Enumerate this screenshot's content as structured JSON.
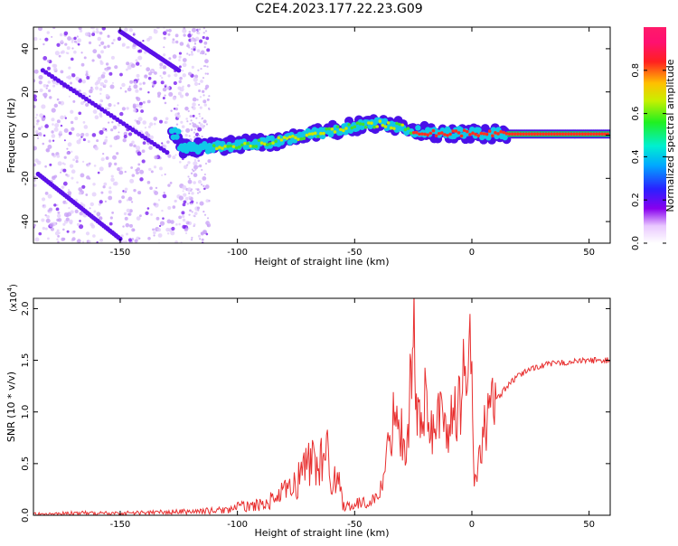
{
  "title": "C2E4.2023.177.22.23.G09",
  "chart_data": [
    {
      "type": "heatmap",
      "xlabel": "Height of straight line (km)",
      "ylabel": "Frequency (Hz)",
      "xlim": [
        -187,
        59
      ],
      "ylim": [
        -50,
        50
      ],
      "xticks": [
        -150,
        -100,
        -50,
        0,
        50
      ],
      "yticks": [
        -40,
        -20,
        0,
        20,
        40
      ],
      "colorbar": {
        "label": "Normalized spectral amplitude",
        "range": [
          0.0,
          1.0
        ],
        "ticks": [
          0.0,
          0.2,
          0.4,
          0.6,
          0.8
        ]
      },
      "ridge": [
        {
          "x": -125,
          "y": -6
        },
        {
          "x": -115,
          "y": -6
        },
        {
          "x": -105,
          "y": -5
        },
        {
          "x": -95,
          "y": -4
        },
        {
          "x": -85,
          "y": -3
        },
        {
          "x": -75,
          "y": -1
        },
        {
          "x": -65,
          "y": 1
        },
        {
          "x": -55,
          "y": 3
        },
        {
          "x": -45,
          "y": 5
        },
        {
          "x": -35,
          "y": 5
        },
        {
          "x": -25,
          "y": 2
        },
        {
          "x": -15,
          "y": 1
        },
        {
          "x": -5,
          "y": 1
        },
        {
          "x": 5,
          "y": 0.5
        },
        {
          "x": 15,
          "y": 0.5
        },
        {
          "x": 30,
          "y": 0.5
        },
        {
          "x": 59,
          "y": 0.5
        }
      ],
      "diagonal_streaks": [
        {
          "x": [
            -183,
            -130
          ],
          "y": [
            30,
            -8
          ]
        },
        {
          "x": [
            -150,
            -125
          ],
          "y": [
            48,
            30
          ]
        },
        {
          "x": [
            -185,
            -150
          ],
          "y": [
            -18,
            -48
          ]
        }
      ]
    },
    {
      "type": "line",
      "xlabel": "Height of straight line (km)",
      "ylabel": "SNR (10 * v/v)",
      "y_multiplier": "(x10",
      "y_multiplier_exp": "4",
      "y_multiplier_close": ")",
      "xlim": [
        -187,
        59
      ],
      "ylim": [
        0.0,
        2.1
      ],
      "xticks": [
        -150,
        -100,
        -50,
        0,
        50
      ],
      "yticks": [
        0.0,
        0.5,
        1.0,
        1.5,
        2.0
      ],
      "ytick_labels": [
        "0.0",
        "0.5",
        "1.0",
        "1.5",
        "2.0"
      ],
      "color": "#e83030",
      "series": [
        {
          "x": [
            -187,
            -170,
            -150,
            -130,
            -115,
            -105,
            -100,
            -95,
            -90,
            -85,
            -80,
            -75,
            -72,
            -68,
            -65,
            -62,
            -60,
            -57,
            -55,
            -50,
            -45,
            -40,
            -37,
            -35,
            -32,
            -30,
            -28,
            -27,
            -26,
            -25,
            -24,
            -23,
            -22,
            -20,
            -18,
            -15,
            -12,
            -10,
            -8,
            -6,
            -4,
            -2,
            0,
            1,
            3,
            5,
            8,
            10,
            15,
            20,
            25,
            30,
            35,
            40,
            45,
            50,
            55,
            59
          ],
          "y": [
            0.01,
            0.02,
            0.02,
            0.03,
            0.04,
            0.05,
            0.08,
            0.09,
            0.1,
            0.15,
            0.22,
            0.3,
            0.45,
            0.55,
            0.5,
            0.6,
            0.4,
            0.35,
            0.1,
            0.1,
            0.12,
            0.18,
            0.4,
            0.8,
            1.1,
            0.8,
            0.6,
            1.0,
            1.35,
            2.1,
            0.9,
            1.2,
            0.8,
            1.1,
            0.75,
            1.05,
            0.85,
            0.9,
            0.9,
            1.0,
            1.3,
            1.5,
            1.9,
            0.25,
            0.5,
            0.85,
            1.0,
            1.1,
            1.25,
            1.35,
            1.42,
            1.45,
            1.47,
            1.48,
            1.49,
            1.5,
            1.5,
            1.5
          ]
        }
      ]
    }
  ]
}
